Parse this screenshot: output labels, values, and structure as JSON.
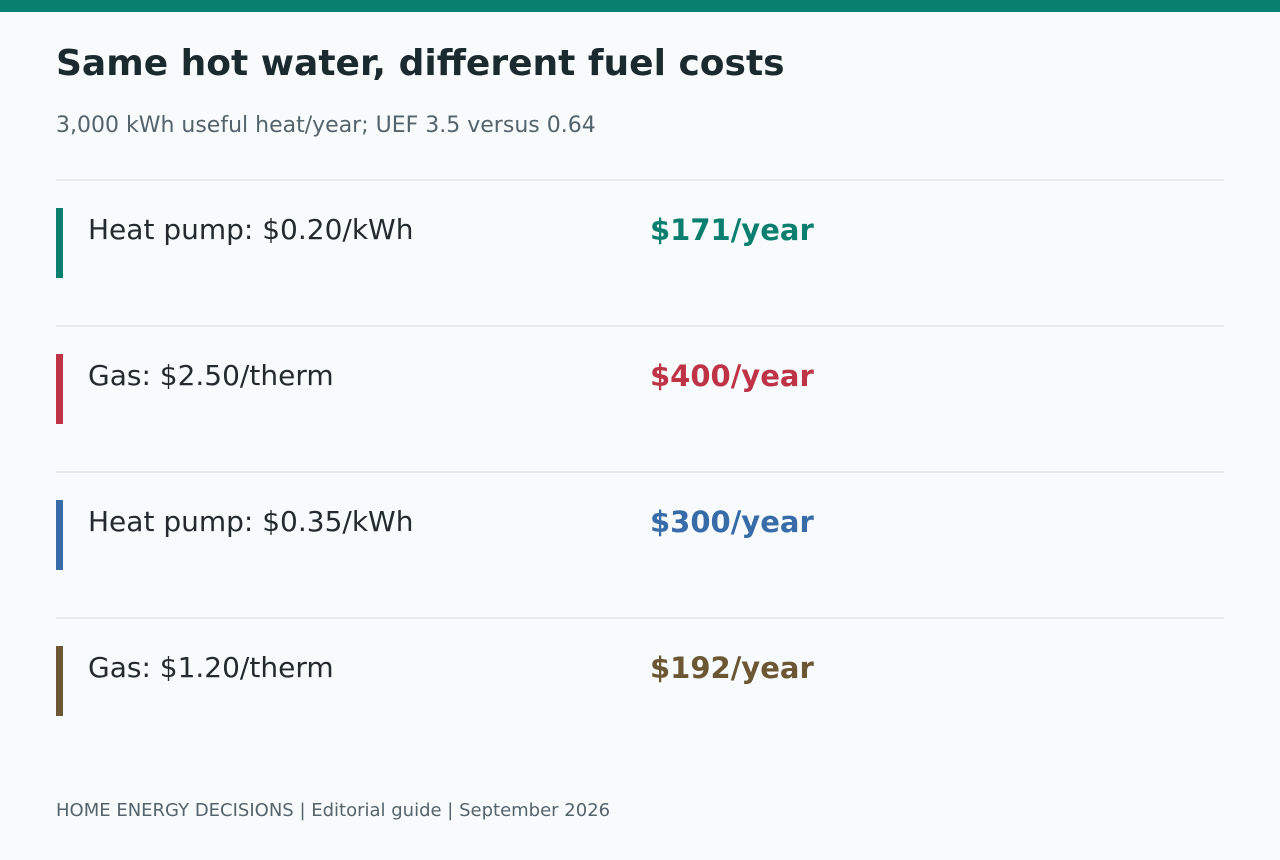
{
  "header": {
    "accent_color": "#08806f",
    "title": "Same hot water, different fuel costs",
    "subtitle": "3,000 kWh useful heat/year; UEF 3.5 versus 0.64"
  },
  "rows": [
    {
      "label": "Heat pump: $0.20/kWh",
      "value": "$171/year",
      "color": "#0a7f70"
    },
    {
      "label": "Gas: $2.50/therm",
      "value": "$400/year",
      "color": "#be3446"
    },
    {
      "label": "Heat pump: $0.35/kWh",
      "value": "$300/year",
      "color": "#376ca8"
    },
    {
      "label": "Gas: $1.20/therm",
      "value": "$192/year",
      "color": "#6b5733"
    }
  ],
  "footer": {
    "text": "HOME ENERGY DECISIONS | Editorial guide | September 2026"
  }
}
